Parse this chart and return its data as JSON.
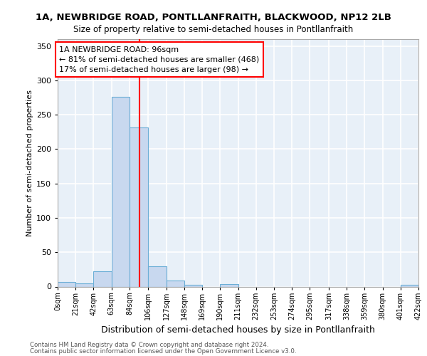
{
  "title_line1": "1A, NEWBRIDGE ROAD, PONTLLANFRAITH, BLACKWOOD, NP12 2LB",
  "title_line2": "Size of property relative to semi-detached houses in Pontllanfraith",
  "xlabel": "Distribution of semi-detached houses by size in Pontllanfraith",
  "ylabel": "Number of semi-detached properties",
  "annotation_title": "1A NEWBRIDGE ROAD: 96sqm",
  "annotation_line2": "← 81% of semi-detached houses are smaller (468)",
  "annotation_line3": "17% of semi-detached houses are larger (98) →",
  "footer_line1": "Contains HM Land Registry data © Crown copyright and database right 2024.",
  "footer_line2": "Contains public sector information licensed under the Open Government Licence v3.0.",
  "property_size": 96,
  "bar_color": "#c8d8ef",
  "bar_edge_color": "#6baed6",
  "vline_color": "red",
  "background_color": "#e8f0f8",
  "grid_color": "#ffffff",
  "bin_edges": [
    0,
    21,
    42,
    63,
    84,
    106,
    127,
    148,
    169,
    190,
    211,
    232,
    253,
    274,
    295,
    317,
    338,
    359,
    380,
    401,
    422
  ],
  "bin_labels": [
    "0sqm",
    "21sqm",
    "42sqm",
    "63sqm",
    "84sqm",
    "106sqm",
    "127sqm",
    "148sqm",
    "169sqm",
    "190sqm",
    "211sqm",
    "232sqm",
    "253sqm",
    "274sqm",
    "295sqm",
    "317sqm",
    "338sqm",
    "359sqm",
    "380sqm",
    "401sqm",
    "422sqm"
  ],
  "bar_heights": [
    7,
    5,
    22,
    276,
    232,
    30,
    9,
    3,
    0,
    4,
    0,
    0,
    0,
    0,
    0,
    0,
    0,
    0,
    0,
    3
  ],
  "ylim": [
    0,
    360
  ],
  "xlim": [
    0,
    422
  ],
  "yticks": [
    0,
    50,
    100,
    150,
    200,
    250,
    300,
    350
  ]
}
